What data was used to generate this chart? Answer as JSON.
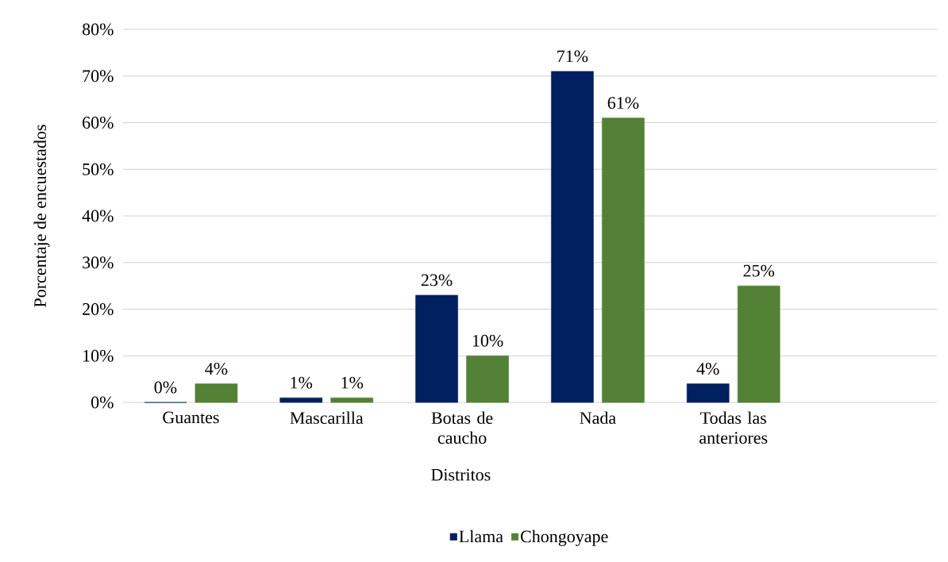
{
  "chart_data": {
    "type": "bar",
    "ylabel": "Porcentaje de encuestados",
    "xlabel": "Distritos",
    "categories": [
      "Guantes",
      "Mascarilla",
      "Botas de caucho",
      "Nada",
      "Todas las anteriores",
      null
    ],
    "series": [
      {
        "name": "Llama",
        "color": "#002060",
        "values": [
          0,
          1,
          23,
          71,
          4,
          null
        ],
        "value_labels": [
          "0%",
          "1%",
          "23%",
          "71%",
          "4%",
          null
        ]
      },
      {
        "name": "Chongoyape",
        "color": "#538135",
        "values": [
          4,
          1,
          10,
          61,
          25,
          null
        ],
        "value_labels": [
          "4%",
          "1%",
          "10%",
          "61%",
          "25%",
          null
        ]
      }
    ],
    "ylim": [
      0,
      80
    ],
    "yticks": [
      {
        "value": 0,
        "label": "0%"
      },
      {
        "value": 10,
        "label": "10%"
      },
      {
        "value": 20,
        "label": "20%"
      },
      {
        "value": 30,
        "label": "30%"
      },
      {
        "value": 40,
        "label": "40%"
      },
      {
        "value": 50,
        "label": "50%"
      },
      {
        "value": 60,
        "label": "60%"
      },
      {
        "value": 70,
        "label": "70%"
      },
      {
        "value": 80,
        "label": "80%"
      }
    ],
    "grid": "y",
    "legend": "bottom"
  }
}
